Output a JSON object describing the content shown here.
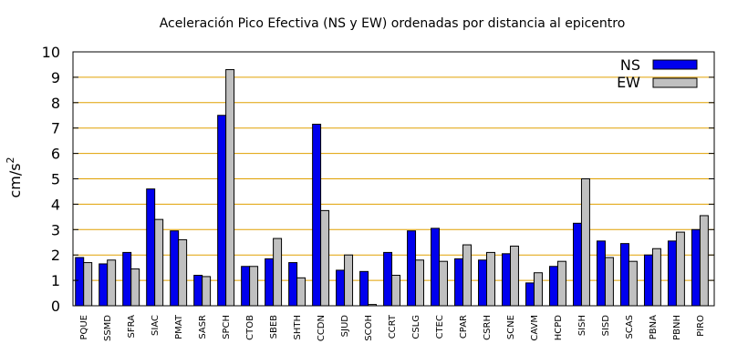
{
  "chart_data": {
    "type": "bar",
    "title": "Aceleración Pico Efectiva (NS y EW) ordenadas por distancia al epicentro",
    "xlabel": "",
    "ylabel_base": "cm/s",
    "ylabel_exp": "2",
    "ylim": [
      0,
      10
    ],
    "yticks": [
      "0",
      "1",
      "2",
      "3",
      "4",
      "5",
      "6",
      "7",
      "8",
      "9",
      "10"
    ],
    "grid": "horizontal",
    "legend_position": "top-right",
    "categories": [
      "PQUE",
      "SSMD",
      "SFRA",
      "SIAC",
      "PMAT",
      "SASR",
      "SPCH",
      "CTOB",
      "SBEB",
      "SHTH",
      "CCDN",
      "SJUD",
      "SCOH",
      "CCRT",
      "CSLG",
      "CTEC",
      "CPAR",
      "CSRH",
      "SCNE",
      "CAVM",
      "HCPD",
      "SISH",
      "SISD",
      "SCAS",
      "PBNA",
      "PBNH",
      "PIRO"
    ],
    "series": [
      {
        "name": "NS",
        "color": "#0000ee",
        "values": [
          1.9,
          1.65,
          2.1,
          4.6,
          2.95,
          1.2,
          7.5,
          1.55,
          1.85,
          1.7,
          7.15,
          1.4,
          1.35,
          2.1,
          2.95,
          3.05,
          1.85,
          1.8,
          2.05,
          0.9,
          1.55,
          3.25,
          2.55,
          2.45,
          2.0,
          2.55,
          3.0
        ]
      },
      {
        "name": "EW",
        "color": "#c0c0c0",
        "values": [
          1.7,
          1.8,
          1.45,
          3.4,
          2.6,
          1.15,
          9.3,
          1.55,
          2.65,
          1.1,
          3.75,
          2.0,
          0.05,
          1.2,
          1.8,
          1.75,
          2.4,
          2.1,
          2.35,
          1.3,
          1.75,
          5.0,
          1.9,
          1.75,
          2.25,
          2.9,
          3.55
        ]
      }
    ]
  }
}
